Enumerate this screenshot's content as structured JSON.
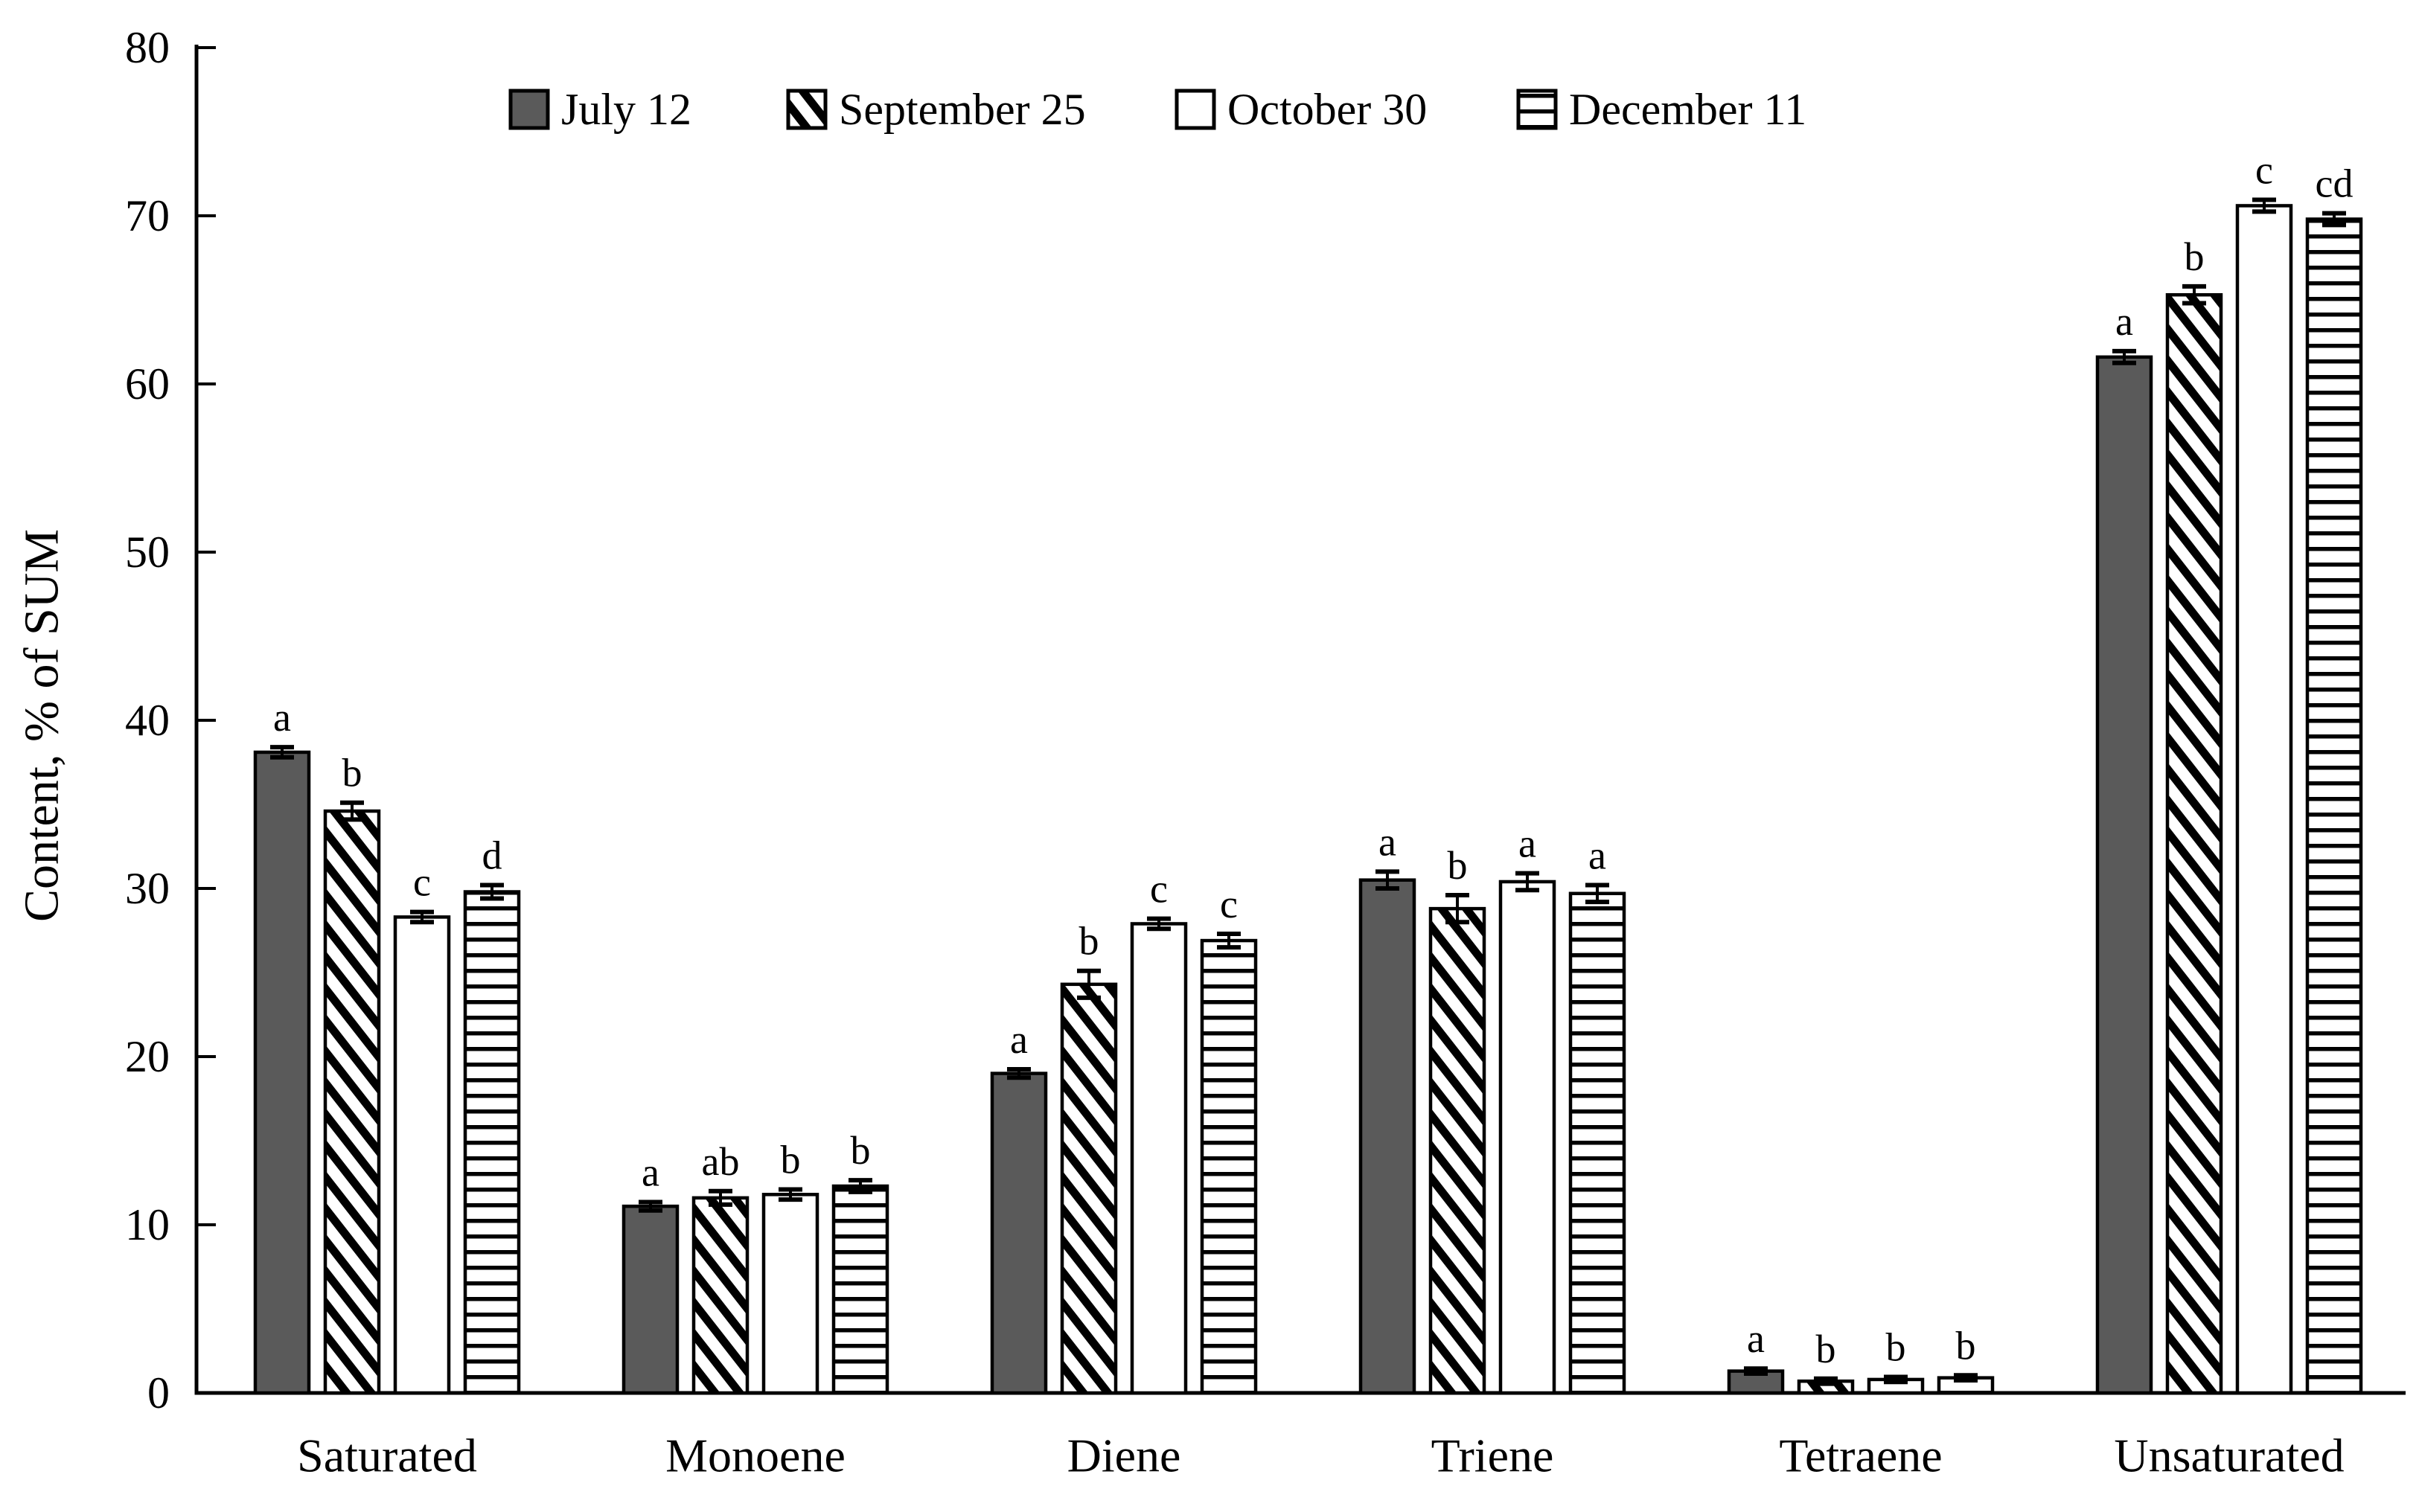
{
  "figure": {
    "background": "#ffffff",
    "text_color": "#000000",
    "bar_fill_gray": "#5a5a5a",
    "bar_outline": "#000000"
  },
  "chart_data": {
    "type": "bar",
    "title": "",
    "xlabel": "",
    "ylabel": "Content, % of SUM",
    "ylim": [
      0,
      80
    ],
    "yticks": [
      "0",
      "10",
      "20",
      "30",
      "40",
      "50",
      "60",
      "70",
      "80"
    ],
    "grid": false,
    "legend_position": "top",
    "error_bars": true,
    "categories": [
      "Saturated",
      "Monoene",
      "Diene",
      "Triene",
      "Tetraene",
      "Unsaturated"
    ],
    "series": [
      {
        "name": "July 12",
        "pattern": "solid-dark-gray",
        "swatch_fill": "#5a5a5a",
        "values": [
          38.1,
          11.1,
          19.0,
          30.5,
          1.3,
          61.6
        ],
        "errors": [
          0.3,
          0.25,
          0.25,
          0.5,
          0.15,
          0.35
        ],
        "letters": [
          "a",
          "a",
          "a",
          "a",
          "a",
          "a"
        ]
      },
      {
        "name": "September 25",
        "pattern": "diagonal-hatch",
        "swatch_fill": "#ffffff",
        "values": [
          34.6,
          11.6,
          24.3,
          28.8,
          0.7,
          65.3
        ],
        "errors": [
          0.5,
          0.4,
          0.8,
          0.8,
          0.15,
          0.5
        ],
        "letters": [
          "b",
          "ab",
          "b",
          "b",
          "b",
          "b"
        ]
      },
      {
        "name": "October 30",
        "pattern": "open-white",
        "swatch_fill": "#ffffff",
        "values": [
          28.3,
          11.8,
          27.9,
          30.4,
          0.8,
          70.6
        ],
        "errors": [
          0.3,
          0.3,
          0.3,
          0.5,
          0.15,
          0.35
        ],
        "letters": [
          "c",
          "b",
          "c",
          "a",
          "b",
          "c"
        ]
      },
      {
        "name": "December 11",
        "pattern": "horizontal-lines",
        "swatch_fill": "#ffffff",
        "values": [
          29.8,
          12.3,
          26.9,
          29.7,
          0.9,
          69.8
        ],
        "errors": [
          0.4,
          0.35,
          0.4,
          0.5,
          0.15,
          0.35
        ],
        "letters": [
          "d",
          "b",
          "c",
          "a",
          "b",
          "cd"
        ]
      }
    ]
  }
}
